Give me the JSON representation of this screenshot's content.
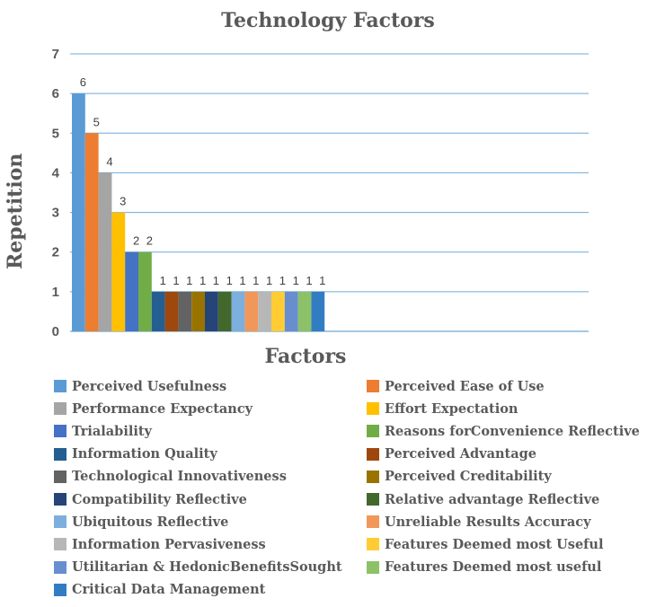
{
  "chart_data": {
    "type": "bar",
    "title": "Technology Factors",
    "xlabel": "Factors",
    "ylabel": "Repetition",
    "ylim": [
      0,
      7
    ],
    "yticks": [
      0,
      1,
      2,
      3,
      4,
      5,
      6,
      7
    ],
    "grid": true,
    "legend_position": "bottom",
    "data_labels": true,
    "series": [
      {
        "name": "Perceived Usefulness",
        "value": 6,
        "color": "#5B9BD5"
      },
      {
        "name": "Perceived Ease of Use",
        "value": 5,
        "color": "#ED7D31"
      },
      {
        "name": "Performance Expectancy",
        "value": 4,
        "color": "#A5A5A5"
      },
      {
        "name": "Effort Expectation",
        "value": 3,
        "color": "#FFC000"
      },
      {
        "name": "Trialability",
        "value": 2,
        "color": "#4472C4"
      },
      {
        "name": "Reasons forConvenience Reflective",
        "value": 2,
        "color": "#70AD47"
      },
      {
        "name": "Information Quality",
        "value": 1,
        "color": "#255E91"
      },
      {
        "name": "Perceived Advantage",
        "value": 1,
        "color": "#9E480E"
      },
      {
        "name": "Technological Innovativeness",
        "value": 1,
        "color": "#636363"
      },
      {
        "name": "Perceived Creditability",
        "value": 1,
        "color": "#997300"
      },
      {
        "name": "Compatibility Reflective",
        "value": 1,
        "color": "#264478"
      },
      {
        "name": "Relative advantage Reflective",
        "value": 1,
        "color": "#43682B"
      },
      {
        "name": "Ubiquitous Reflective",
        "value": 1,
        "color": "#7CAFDD"
      },
      {
        "name": "Unreliable Results Accuracy",
        "value": 1,
        "color": "#F1975A"
      },
      {
        "name": "Information Pervasiveness",
        "value": 1,
        "color": "#B7B7B7"
      },
      {
        "name": "Features Deemed most Useful",
        "value": 1,
        "color": "#FFCD33"
      },
      {
        "name": "Utilitarian & HedonicBenefitsSought",
        "value": 1,
        "color": "#698ED0"
      },
      {
        "name": "Features Deemed most useful",
        "value": 1,
        "color": "#8CC168"
      },
      {
        "name": "Critical Data Management",
        "value": 1,
        "color": "#327DC2"
      }
    ]
  }
}
